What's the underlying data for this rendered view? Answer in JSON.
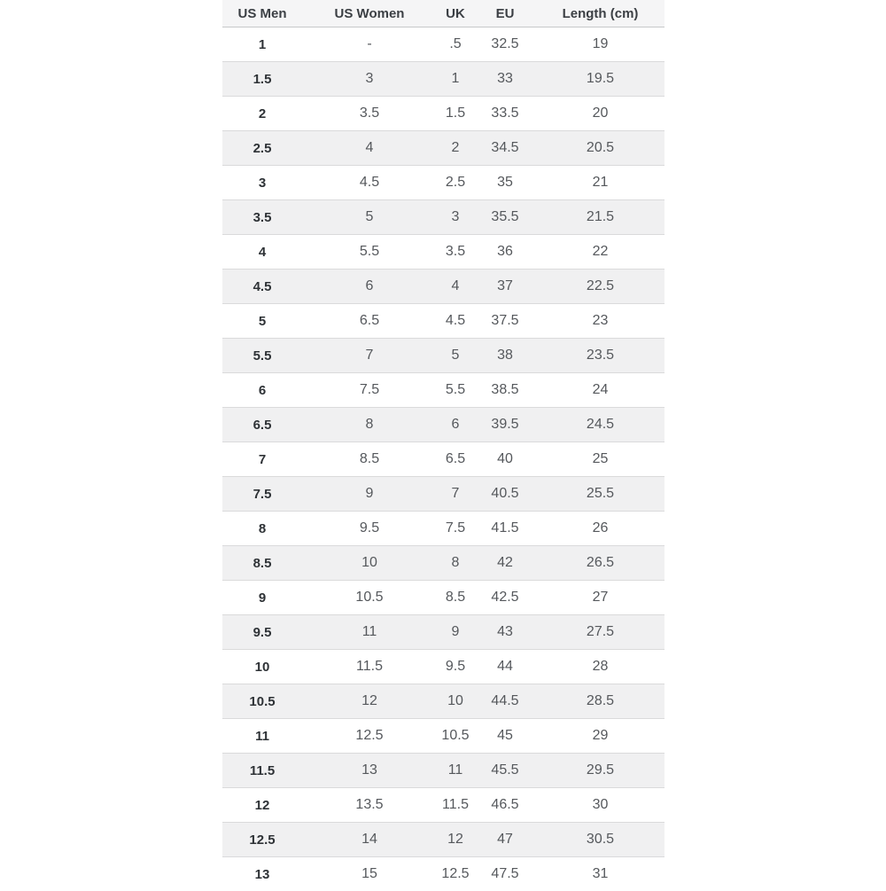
{
  "chart_data": {
    "type": "table",
    "columns": [
      "US Men",
      "US Women",
      "UK",
      "EU",
      "Length (cm)"
    ],
    "rows": [
      [
        "1",
        "-",
        ".5",
        "32.5",
        "19"
      ],
      [
        "1.5",
        "3",
        "1",
        "33",
        "19.5"
      ],
      [
        "2",
        "3.5",
        "1.5",
        "33.5",
        "20"
      ],
      [
        "2.5",
        "4",
        "2",
        "34.5",
        "20.5"
      ],
      [
        "3",
        "4.5",
        "2.5",
        "35",
        "21"
      ],
      [
        "3.5",
        "5",
        "3",
        "35.5",
        "21.5"
      ],
      [
        "4",
        "5.5",
        "3.5",
        "36",
        "22"
      ],
      [
        "4.5",
        "6",
        "4",
        "37",
        "22.5"
      ],
      [
        "5",
        "6.5",
        "4.5",
        "37.5",
        "23"
      ],
      [
        "5.5",
        "7",
        "5",
        "38",
        "23.5"
      ],
      [
        "6",
        "7.5",
        "5.5",
        "38.5",
        "24"
      ],
      [
        "6.5",
        "8",
        "6",
        "39.5",
        "24.5"
      ],
      [
        "7",
        "8.5",
        "6.5",
        "40",
        "25"
      ],
      [
        "7.5",
        "9",
        "7",
        "40.5",
        "25.5"
      ],
      [
        "8",
        "9.5",
        "7.5",
        "41.5",
        "26"
      ],
      [
        "8.5",
        "10",
        "8",
        "42",
        "26.5"
      ],
      [
        "9",
        "10.5",
        "8.5",
        "42.5",
        "27"
      ],
      [
        "9.5",
        "11",
        "9",
        "43",
        "27.5"
      ],
      [
        "10",
        "11.5",
        "9.5",
        "44",
        "28"
      ],
      [
        "10.5",
        "12",
        "10",
        "44.5",
        "28.5"
      ],
      [
        "11",
        "12.5",
        "10.5",
        "45",
        "29"
      ],
      [
        "11.5",
        "13",
        "11",
        "45.5",
        "29.5"
      ],
      [
        "12",
        "13.5",
        "11.5",
        "46.5",
        "30"
      ],
      [
        "12.5",
        "14",
        "12",
        "47",
        "30.5"
      ],
      [
        "13",
        "15",
        "12.5",
        "47.5",
        "31"
      ]
    ],
    "layout": {
      "grid": "horizontal row separators only",
      "zebra_striping": true,
      "header_background": "#f5f5f6",
      "alt_row_background": "#f0f0f1",
      "border_color": "#dadadb"
    }
  },
  "colors": {
    "page_background": "#ffffff",
    "header_bg": "#f5f5f6",
    "alt_row_bg": "#f0f0f1",
    "row_border": "#dadadb",
    "header_border": "#c7c8ca",
    "text_bold": "#2e3236",
    "text_regular": "#55585c"
  }
}
